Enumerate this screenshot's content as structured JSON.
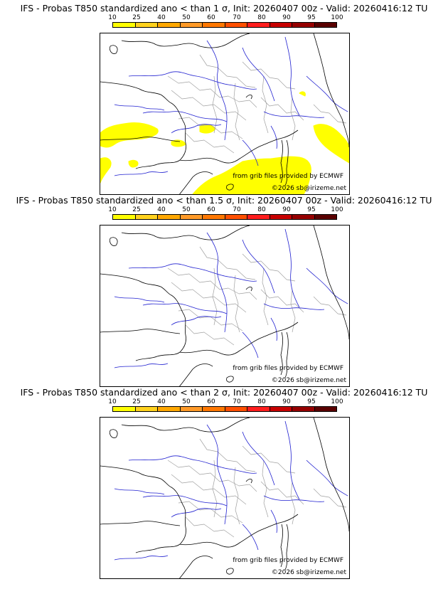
{
  "scale": {
    "labels": [
      "10",
      "25",
      "40",
      "50",
      "60",
      "70",
      "80",
      "90",
      "95",
      "100"
    ],
    "colors": [
      "#ffff00",
      "#ffd21e",
      "#ffa800",
      "#ff9a28",
      "#ff7800",
      "#ff5000",
      "#ff1e1e",
      "#c80000",
      "#960000",
      "#5a0000"
    ]
  },
  "panels": [
    {
      "title": "IFS - Probas T850  standardized ano < than 1 σ, Init: 20260407 00z - Valid: 20260416:12 TU",
      "probability_area": "yellow zones along Bay of Biscay, western Mediterranean, Sardinia and Corsica east coast",
      "credit_source": "from grib files provided by ECMWF",
      "credit_copyright": "©2026 sb@irizeme.net"
    },
    {
      "title": "IFS - Probas T850  standardized ano < than 1.5 σ, Init: 20260407 00z - Valid: 20260416:12 TU",
      "probability_area": "",
      "credit_source": "from grib files provided by ECMWF",
      "credit_copyright": "©2026 sb@irizeme.net"
    },
    {
      "title": "IFS - Probas T850  standardized ano < than 2 σ, Init: 20260407 00z - Valid: 20260416:12 TU",
      "probability_area": "",
      "credit_source": "from grib files provided by ECMWF",
      "credit_copyright": "©2026 sb@irizeme.net"
    }
  ],
  "map_colors": {
    "coast": "#000000",
    "rivers": "#2020d0",
    "borders": "#a0a0a0",
    "probability": "#ffff00"
  }
}
